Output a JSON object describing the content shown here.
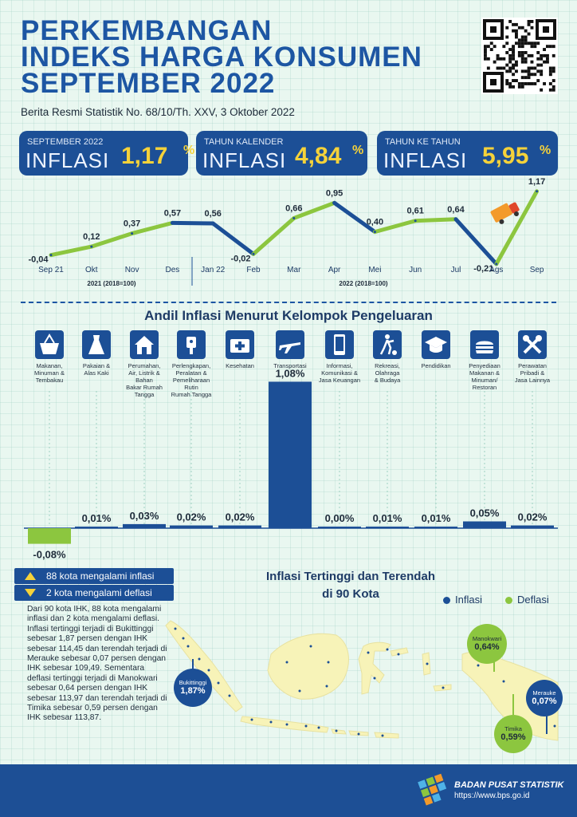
{
  "header": {
    "title_lines": [
      "PERKEMBANGAN",
      "INDEKS HARGA KONSUMEN",
      "SEPTEMBER 2022"
    ],
    "subtitle": "Berita Resmi Statistik No. 68/10/Th. XXV, 3 Oktober 2022"
  },
  "cards": [
    {
      "label": "SEPTEMBER 2022",
      "big": "INFLASI",
      "value": "1,17",
      "unit": "%"
    },
    {
      "label": "TAHUN KALENDER",
      "big": "INFLASI",
      "value": "4,84",
      "unit": "%"
    },
    {
      "label": "TAHUN KE TAHUN",
      "big": "INFLASI",
      "value": "5,95",
      "unit": "%"
    }
  ],
  "chart_data": [
    {
      "type": "line",
      "x": [
        "Sep 21",
        "Okt",
        "Nov",
        "Des",
        "Jan 22",
        "Feb",
        "Mar",
        "Apr",
        "Mei",
        "Jun",
        "Jul",
        "Ags",
        "Sep"
      ],
      "values": [
        -0.04,
        0.12,
        0.37,
        0.57,
        0.56,
        -0.02,
        0.66,
        0.95,
        0.4,
        0.61,
        0.64,
        -0.21,
        1.17
      ],
      "value_labels": [
        "-0,04",
        "0,12",
        "0,37",
        "0,57",
        "0,56",
        "-0,02",
        "0,66",
        "0,95",
        "0,40",
        "0,61",
        "0,64",
        "-0,21",
        "1,17"
      ],
      "period_labels": [
        "2021 (2018=100)",
        "2022 (2018=100)"
      ],
      "colors": {
        "up": "#1c4f96",
        "down": "#8cc63f"
      }
    },
    {
      "type": "bar",
      "title": "Andil Inflasi Menurut Kelompok Pengeluaran",
      "categories": [
        "Makanan, Minuman & Tembakau",
        "Pakaian & Alas Kaki",
        "Perumahan, Air, Listrik & Bahan Bakar Rumah Tangga",
        "Perlengkapan, Peralatan & Pemeliharaan Rutin Rumah Tangga",
        "Kesehatan",
        "Transportasi",
        "Informasi, Komunikasi & Jasa Keuangan",
        "Rekreasi, Olahraga & Budaya",
        "Pendidikan",
        "Penyediaan Makanan & Minuman/ Restoran",
        "Perawatan Pribadi & Jasa Lainnya"
      ],
      "values": [
        -0.08,
        0.01,
        0.03,
        0.02,
        0.02,
        1.08,
        0.0,
        0.01,
        0.01,
        0.05,
        0.02
      ],
      "value_labels": [
        "-0,08%",
        "0,01%",
        "0,03%",
        "0,02%",
        "0,02%",
        "1,08%",
        "0,00%",
        "0,01%",
        "0,01%",
        "0,05%",
        "0,02%"
      ],
      "colors": {
        "positive": "#1c4f96",
        "negative": "#8cc63f"
      }
    }
  ],
  "icon_labels": [
    [
      "Makanan,",
      "Minuman &",
      "Tembakau"
    ],
    [
      "Pakaian &",
      "Alas Kaki"
    ],
    [
      "Perumahan,",
      "Air, Listrik &",
      "Bahan",
      "Bakar Rumah",
      "Tangga"
    ],
    [
      "Perlengkapan,",
      "Peralatan &",
      "Pemeliharaan",
      "Rutin",
      "Rumah Tangga"
    ],
    [
      "Kesehatan"
    ],
    [
      "Transportasi"
    ],
    [
      "Informasi,",
      "Komunikasi &",
      "Jasa Keuangan"
    ],
    [
      "Rekreasi,",
      "Olahraga",
      "& Budaya"
    ],
    [
      "Pendidikan"
    ],
    [
      "Penyediaan",
      "Makanan &",
      "Minuman/",
      "Restoran"
    ],
    [
      "Perawatan",
      "Pribadi &",
      "Jasa Lainnya"
    ]
  ],
  "icons": [
    "shopping-basket-icon",
    "dress-icon",
    "house-icon",
    "iron-icon",
    "first-aid-kit-icon",
    "airplane-icon",
    "smartphone-icon",
    "soccer-player-icon",
    "graduation-cap-icon",
    "fast-food-icon",
    "tools-icon"
  ],
  "cities": {
    "inflasi_text": "88 kota mengalami inflasi",
    "deflasi_text": "2 kota mengalami deflasi",
    "paragraph": "Dari 90 kota IHK, 88 kota mengalami inflasi dan 2 kota mengalami deflasi. Inflasi tertinggi terjadi di Bukittinggi sebesar 1,87 persen dengan IHK sebesar 114,45 dan terendah terjadi di Merauke sebesar 0,07 persen dengan IHK sebesar 109,49. Sementara deflasi tertinggi terjadi di Manokwari sebesar 0,64 persen dengan IHK sebesar 113,97 dan terendah terjadi di Timika sebesar 0,59 persen dengan IHK sebesar 113,87."
  },
  "map": {
    "title_lines": [
      "Inflasi Tertinggi dan Terendah",
      "di 90 Kota"
    ],
    "legend": [
      {
        "label": "Inflasi",
        "color": "#1c4f96"
      },
      {
        "label": "Deflasi",
        "color": "#8cc63f"
      }
    ],
    "bubbles": [
      {
        "name": "Bukittinggi",
        "value": "1,87%",
        "kind": "inflasi"
      },
      {
        "name": "Manokwari",
        "value": "0,64%",
        "kind": "deflasi"
      },
      {
        "name": "Merauke",
        "value": "0,07%",
        "kind": "inflasi"
      },
      {
        "name": "Timika",
        "value": "0,59%",
        "kind": "deflasi"
      }
    ]
  },
  "footer": {
    "org": "BADAN PUSAT STATISTIK",
    "url": "https://www.bps.go.id"
  },
  "colors": {
    "navy": "#1c4f96",
    "green": "#8cc63f",
    "yellow": "#f5d23a",
    "map_land": "#f7f3b8"
  }
}
